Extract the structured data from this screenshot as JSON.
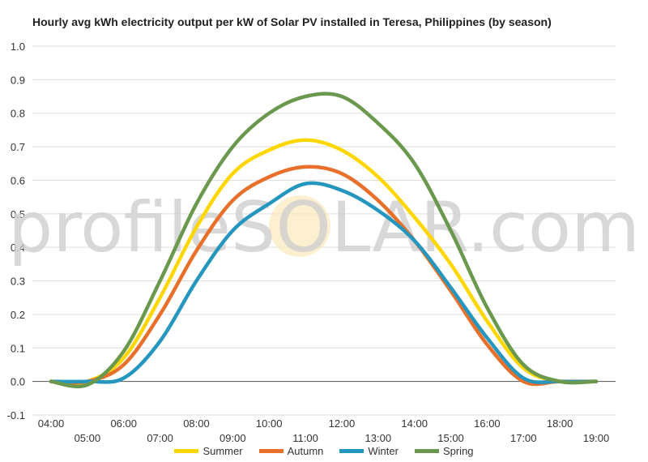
{
  "chart_data": {
    "type": "line",
    "title": "Hourly avg kWh electricity output per kW of Solar PV installed in Teresa, Philippines (by season)",
    "watermark": "profileSOLAR.com",
    "xlabel": "",
    "ylabel": "",
    "x": [
      "04:00",
      "05:00",
      "06:00",
      "07:00",
      "08:00",
      "09:00",
      "10:00",
      "11:00",
      "12:00",
      "13:00",
      "14:00",
      "15:00",
      "16:00",
      "17:00",
      "18:00",
      "19:00"
    ],
    "ylim": [
      -0.1,
      1.0
    ],
    "yticks": [
      "1.0",
      "0.9",
      "0.8",
      "0.7",
      "0.6",
      "0.5",
      "0.4",
      "0.3",
      "0.2",
      "0.1",
      "0.0",
      "-0.1"
    ],
    "grid": true,
    "legend_position": "bottom",
    "series": [
      {
        "name": "Summer",
        "color": "#FFD700",
        "values": [
          0.0,
          0.0,
          0.07,
          0.25,
          0.46,
          0.62,
          0.69,
          0.72,
          0.69,
          0.61,
          0.49,
          0.35,
          0.18,
          0.04,
          0.0,
          0.0
        ]
      },
      {
        "name": "Autumn",
        "color": "#E8702A",
        "values": [
          0.0,
          0.0,
          0.05,
          0.2,
          0.39,
          0.54,
          0.61,
          0.64,
          0.62,
          0.54,
          0.42,
          0.27,
          0.11,
          0.0,
          0.0,
          0.0
        ]
      },
      {
        "name": "Winter",
        "color": "#2596BE",
        "values": [
          0.0,
          0.0,
          0.01,
          0.12,
          0.3,
          0.45,
          0.53,
          0.59,
          0.57,
          0.51,
          0.42,
          0.28,
          0.13,
          0.01,
          0.0,
          0.0
        ]
      },
      {
        "name": "Spring",
        "color": "#6A994E",
        "values": [
          0.0,
          -0.01,
          0.09,
          0.3,
          0.53,
          0.7,
          0.8,
          0.85,
          0.85,
          0.77,
          0.65,
          0.45,
          0.22,
          0.05,
          0.0,
          0.0
        ]
      }
    ]
  }
}
